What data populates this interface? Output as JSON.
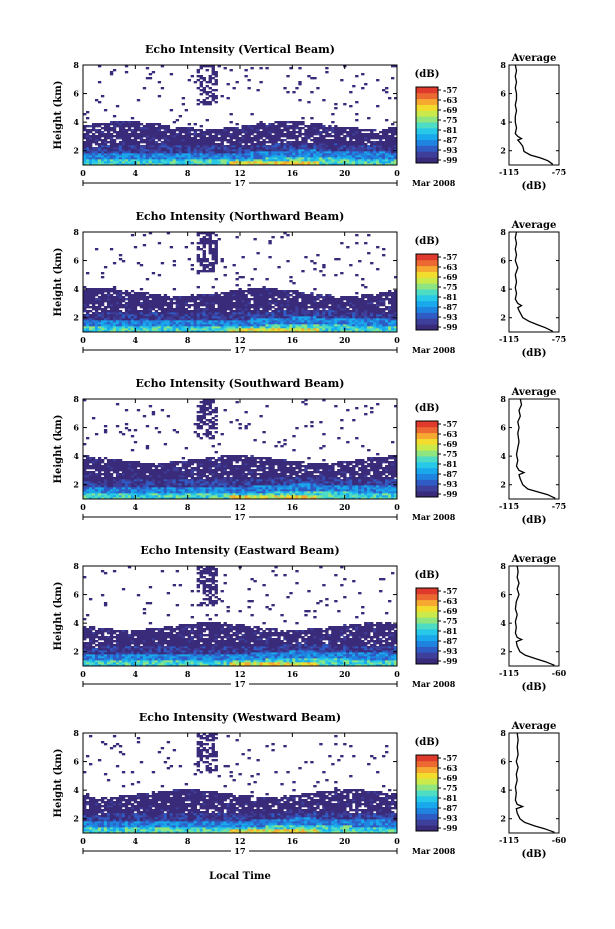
{
  "figure": {
    "xlabel": "Local Time",
    "date_label": "Mar 2008",
    "day_label": "17"
  },
  "colorbar": {
    "unit": "(dB)",
    "palette": [
      "#3a2a7a",
      "#3d3f9a",
      "#2f5bc4",
      "#1f84e0",
      "#1aa8ec",
      "#27c8e8",
      "#4fdcc4",
      "#8fe680",
      "#c9ea4a",
      "#f2dc2e",
      "#f6a830",
      "#ec6a32",
      "#e03a2c"
    ]
  },
  "profile": {
    "title": "Average",
    "xlabel": "(dB)"
  },
  "chart_data": [
    {
      "type": "heatmap",
      "title": "Echo Intensity (Vertical Beam)",
      "ylabel": "Height (km)",
      "x_ticks": [
        "0",
        "4",
        "8",
        "12",
        "16",
        "20",
        "0"
      ],
      "y_ticks": [
        "2",
        "4",
        "6",
        "8"
      ],
      "ylim": [
        1,
        8
      ],
      "colorbar_ticks": [
        "-57",
        "-63",
        "-69",
        "-75",
        "-81",
        "-87",
        "-93",
        "-99"
      ],
      "profile": {
        "xlim": [
          -115,
          -75
        ],
        "x_ticks": [
          "-115",
          "-75"
        ],
        "y_ticks": [
          "2",
          "4",
          "6",
          "8"
        ],
        "points": [
          [
            -80,
            1.05
          ],
          [
            -84,
            1.3
          ],
          [
            -90,
            1.5
          ],
          [
            -98,
            1.7
          ],
          [
            -103,
            1.95
          ],
          [
            -104,
            2.3
          ],
          [
            -106,
            2.55
          ],
          [
            -108,
            2.75
          ],
          [
            -105,
            2.85
          ],
          [
            -108,
            3.0
          ],
          [
            -110,
            3.2
          ],
          [
            -109,
            3.6
          ],
          [
            -110,
            4.0
          ],
          [
            -110,
            4.4
          ],
          [
            -109,
            4.8
          ],
          [
            -110,
            5.2
          ],
          [
            -109,
            5.6
          ],
          [
            -109,
            6.0
          ],
          [
            -110,
            6.4
          ],
          [
            -109,
            6.8
          ],
          [
            -110,
            7.2
          ],
          [
            -109,
            7.6
          ],
          [
            -110,
            8.0
          ]
        ]
      }
    },
    {
      "type": "heatmap",
      "title": "Echo Intensity (Northward Beam)",
      "ylabel": "Height (km)",
      "x_ticks": [
        "0",
        "4",
        "8",
        "12",
        "16",
        "20",
        "0"
      ],
      "y_ticks": [
        "2",
        "4",
        "6",
        "8"
      ],
      "ylim": [
        1,
        8
      ],
      "colorbar_ticks": [
        "-57",
        "-63",
        "-69",
        "-75",
        "-81",
        "-87",
        "-93",
        "-99"
      ],
      "profile": {
        "xlim": [
          -115,
          -75
        ],
        "x_ticks": [
          "-115",
          "-75"
        ],
        "y_ticks": [
          "2",
          "4",
          "6",
          "8"
        ],
        "points": [
          [
            -80,
            1.05
          ],
          [
            -86,
            1.3
          ],
          [
            -92,
            1.5
          ],
          [
            -99,
            1.75
          ],
          [
            -104,
            2.0
          ],
          [
            -107,
            2.5
          ],
          [
            -108,
            2.7
          ],
          [
            -105,
            2.85
          ],
          [
            -108,
            3.0
          ],
          [
            -110,
            3.3
          ],
          [
            -109,
            3.7
          ],
          [
            -110,
            4.1
          ],
          [
            -109,
            4.5
          ],
          [
            -110,
            5.0
          ],
          [
            -108,
            5.5
          ],
          [
            -110,
            6.0
          ],
          [
            -109,
            6.4
          ],
          [
            -110,
            6.8
          ],
          [
            -109,
            7.2
          ],
          [
            -110,
            7.6
          ],
          [
            -109,
            8.0
          ]
        ]
      }
    },
    {
      "type": "heatmap",
      "title": "Echo Intensity (Southward Beam)",
      "ylabel": "Height (km)",
      "x_ticks": [
        "0",
        "4",
        "8",
        "12",
        "16",
        "20",
        "0"
      ],
      "y_ticks": [
        "2",
        "4",
        "6",
        "8"
      ],
      "ylim": [
        1,
        8
      ],
      "colorbar_ticks": [
        "-57",
        "-63",
        "-69",
        "-75",
        "-81",
        "-87",
        "-93",
        "-99"
      ],
      "profile": {
        "xlim": [
          -115,
          -75
        ],
        "x_ticks": [
          "-115",
          "-75"
        ],
        "y_ticks": [
          "2",
          "4",
          "6",
          "8"
        ],
        "points": [
          [
            -78,
            1.05
          ],
          [
            -84,
            1.3
          ],
          [
            -92,
            1.5
          ],
          [
            -100,
            1.7
          ],
          [
            -104,
            2.0
          ],
          [
            -106,
            2.4
          ],
          [
            -107,
            2.7
          ],
          [
            -103,
            2.85
          ],
          [
            -107,
            3.0
          ],
          [
            -109,
            3.3
          ],
          [
            -108,
            3.7
          ],
          [
            -109,
            4.1
          ],
          [
            -108,
            4.6
          ],
          [
            -107,
            5.0
          ],
          [
            -108,
            5.6
          ],
          [
            -107,
            6.0
          ],
          [
            -108,
            6.4
          ],
          [
            -106,
            6.8
          ],
          [
            -107,
            7.2
          ],
          [
            -105,
            7.6
          ],
          [
            -106,
            8.0
          ]
        ]
      }
    },
    {
      "type": "heatmap",
      "title": "Echo Intensity (Eastward Beam)",
      "ylabel": "Height (km)",
      "x_ticks": [
        "0",
        "4",
        "8",
        "12",
        "16",
        "20",
        "0"
      ],
      "y_ticks": [
        "2",
        "4",
        "6",
        "8"
      ],
      "ylim": [
        1,
        8
      ],
      "colorbar_ticks": [
        "-57",
        "-63",
        "-69",
        "-75",
        "-81",
        "-87",
        "-93",
        "-99"
      ],
      "profile": {
        "xlim": [
          -115,
          -60
        ],
        "x_ticks": [
          "-115",
          "-60"
        ],
        "y_ticks": [
          "2",
          "4",
          "6",
          "8"
        ],
        "points": [
          [
            -65,
            1.05
          ],
          [
            -75,
            1.3
          ],
          [
            -85,
            1.5
          ],
          [
            -97,
            1.75
          ],
          [
            -103,
            2.0
          ],
          [
            -106,
            2.4
          ],
          [
            -107,
            2.7
          ],
          [
            -101,
            2.85
          ],
          [
            -106,
            3.0
          ],
          [
            -108,
            3.3
          ],
          [
            -107,
            3.7
          ],
          [
            -108,
            4.1
          ],
          [
            -106,
            4.6
          ],
          [
            -108,
            5.0
          ],
          [
            -107,
            5.5
          ],
          [
            -104,
            6.0
          ],
          [
            -106,
            6.4
          ],
          [
            -104,
            6.8
          ],
          [
            -106,
            7.2
          ],
          [
            -105,
            7.6
          ],
          [
            -106,
            8.0
          ]
        ]
      }
    },
    {
      "type": "heatmap",
      "title": "Echo Intensity (Westward Beam)",
      "ylabel": "Height (km)",
      "x_ticks": [
        "0",
        "4",
        "8",
        "12",
        "16",
        "20",
        "0"
      ],
      "y_ticks": [
        "2",
        "4",
        "6",
        "8"
      ],
      "ylim": [
        1,
        8
      ],
      "colorbar_ticks": [
        "-57",
        "-63",
        "-69",
        "-75",
        "-81",
        "-87",
        "-93",
        "-99"
      ],
      "profile": {
        "xlim": [
          -115,
          -60
        ],
        "x_ticks": [
          "-115",
          "-60"
        ],
        "y_ticks": [
          "2",
          "4",
          "6",
          "8"
        ],
        "points": [
          [
            -65,
            1.05
          ],
          [
            -76,
            1.3
          ],
          [
            -87,
            1.5
          ],
          [
            -98,
            1.75
          ],
          [
            -103,
            2.0
          ],
          [
            -106,
            2.4
          ],
          [
            -107,
            2.7
          ],
          [
            -100,
            2.85
          ],
          [
            -106,
            3.0
          ],
          [
            -108,
            3.3
          ],
          [
            -107,
            3.8
          ],
          [
            -108,
            4.2
          ],
          [
            -106,
            4.7
          ],
          [
            -107,
            5.1
          ],
          [
            -105,
            5.6
          ],
          [
            -107,
            6.0
          ],
          [
            -105,
            6.5
          ],
          [
            -106,
            7.0
          ],
          [
            -105,
            7.5
          ],
          [
            -106,
            8.0
          ]
        ]
      }
    }
  ]
}
